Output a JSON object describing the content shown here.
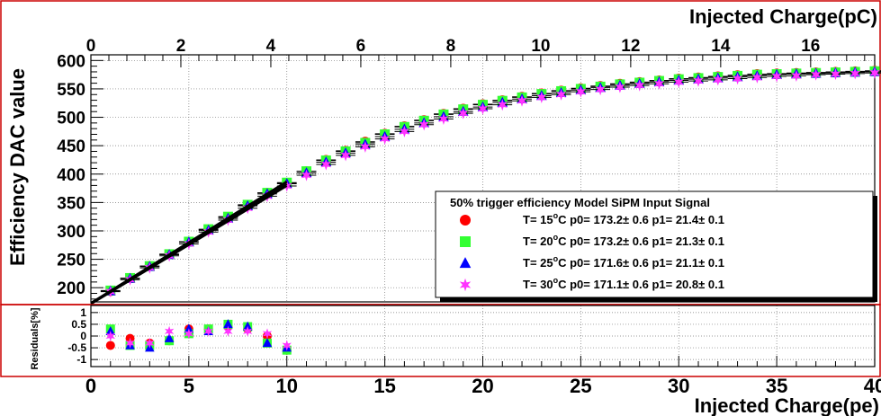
{
  "colors": {
    "frame_red": "#cc0000",
    "grid": "#777777",
    "fit_line": "#000000"
  },
  "chart_data": [
    {
      "type": "scatter",
      "panel": "main",
      "title": "",
      "ylabel": "Efficiency DAC value",
      "top_axis_label": "Injected Charge(pC)",
      "top_axis_ticks": [
        "0",
        "2",
        "4",
        "6",
        "8",
        "10",
        "12",
        "14",
        "16"
      ],
      "xlim": [
        0,
        40
      ],
      "ylim": [
        175,
        610
      ],
      "y_ticks": [
        "200",
        "250",
        "300",
        "350",
        "400",
        "450",
        "500",
        "550",
        "600"
      ],
      "grid": true,
      "legend_position": "lower-right",
      "legend": {
        "title": "50% trigger efficiency Model SiPM Input Signal",
        "entries": [
          {
            "marker": "circle",
            "color": "#ff0000",
            "temp": "T= 15",
            "temp_unit": "C",
            "p0": "p0= 173.2",
            "p0_err": "0.6",
            "p1": "p1= 21.4",
            "p1_err": "0.1"
          },
          {
            "marker": "square",
            "color": "#33ff33",
            "temp": "T= 20",
            "temp_unit": "C",
            "p0": "p0= 173.2",
            "p0_err": "0.6",
            "p1": "p1= 21.3",
            "p1_err": "0.1"
          },
          {
            "marker": "triangle",
            "color": "#0000ff",
            "temp": "T= 25",
            "temp_unit": "C",
            "p0": "p0= 171.6",
            "p0_err": "0.6",
            "p1": "p1= 21.1",
            "p1_err": "0.1"
          },
          {
            "marker": "star",
            "color": "#ff33ff",
            "temp": "T= 30",
            "temp_unit": "C",
            "p0": "p0= 171.1",
            "p0_err": "0.6",
            "p1": "p1= 20.8",
            "p1_err": "0.1"
          }
        ]
      },
      "fit_range": [
        0,
        10
      ],
      "x": [
        1,
        2,
        3,
        4,
        5,
        6,
        7,
        8,
        9,
        10,
        11,
        12,
        13,
        14,
        15,
        16,
        17,
        18,
        19,
        20,
        21,
        22,
        23,
        24,
        25,
        26,
        27,
        28,
        29,
        30,
        31,
        32,
        33,
        34,
        35,
        36,
        37,
        38,
        39,
        40
      ],
      "series": [
        {
          "values": [
            194,
            217,
            238,
            259,
            281,
            302,
            324,
            345,
            367,
            384,
            405,
            425,
            441,
            457,
            471,
            484,
            495,
            506,
            515,
            523,
            530,
            536,
            542,
            547,
            551,
            555,
            559,
            562,
            565,
            568,
            570,
            572,
            574,
            576,
            577,
            578,
            579,
            580,
            581,
            582
          ]
        },
        {
          "values": [
            195,
            217,
            238,
            259,
            281,
            303,
            325,
            346,
            367,
            385,
            405,
            424,
            440,
            455,
            470,
            483,
            494,
            505,
            514,
            522,
            529,
            535,
            541,
            546,
            550,
            554,
            558,
            561,
            564,
            567,
            569,
            571,
            573,
            575,
            576,
            577,
            578,
            579,
            580,
            581
          ]
        },
        {
          "values": [
            194,
            216,
            237,
            258,
            280,
            301,
            322,
            344,
            365,
            383,
            402,
            421,
            437,
            452,
            466,
            479,
            490,
            501,
            510,
            518,
            526,
            532,
            538,
            543,
            548,
            552,
            556,
            559,
            562,
            565,
            567,
            569,
            571,
            573,
            575,
            576,
            577,
            578,
            579,
            580
          ]
        },
        {
          "values": [
            193,
            214,
            235,
            256,
            277,
            298,
            319,
            340,
            361,
            379,
            398,
            417,
            433,
            448,
            462,
            475,
            487,
            497,
            507,
            515,
            522,
            529,
            535,
            540,
            545,
            549,
            553,
            556,
            559,
            562,
            564,
            566,
            568,
            570,
            572,
            573,
            575,
            576,
            577,
            578
          ]
        }
      ]
    },
    {
      "type": "scatter",
      "panel": "residuals",
      "title": "",
      "ylabel": "Residuals[%]",
      "xlabel": "Injected Charge(pe)",
      "xlim": [
        0,
        40
      ],
      "ylim": [
        -1.3,
        1.3
      ],
      "y_ticks": [
        "1",
        "0.5",
        "0",
        "-0.5",
        "-1"
      ],
      "x_ticks": [
        "0",
        "5",
        "10",
        "15",
        "20",
        "25",
        "30",
        "35",
        "40"
      ],
      "grid": true,
      "x": [
        1,
        2,
        3,
        4,
        5,
        6,
        7,
        8,
        9,
        10
      ],
      "series": [
        {
          "values": [
            -0.4,
            -0.1,
            -0.3,
            -0.2,
            0.3,
            0.3,
            0.4,
            0.3,
            0.0,
            -0.6
          ]
        },
        {
          "values": [
            0.3,
            -0.4,
            -0.4,
            -0.2,
            0.1,
            0.3,
            0.5,
            0.4,
            -0.3,
            -0.6
          ]
        },
        {
          "values": [
            0.2,
            -0.4,
            -0.5,
            -0.1,
            0.3,
            0.2,
            0.5,
            0.4,
            -0.3,
            -0.5
          ]
        },
        {
          "values": [
            0.0,
            -0.3,
            -0.3,
            0.2,
            0.1,
            0.2,
            0.2,
            0.2,
            0.1,
            -0.4
          ]
        }
      ]
    }
  ]
}
